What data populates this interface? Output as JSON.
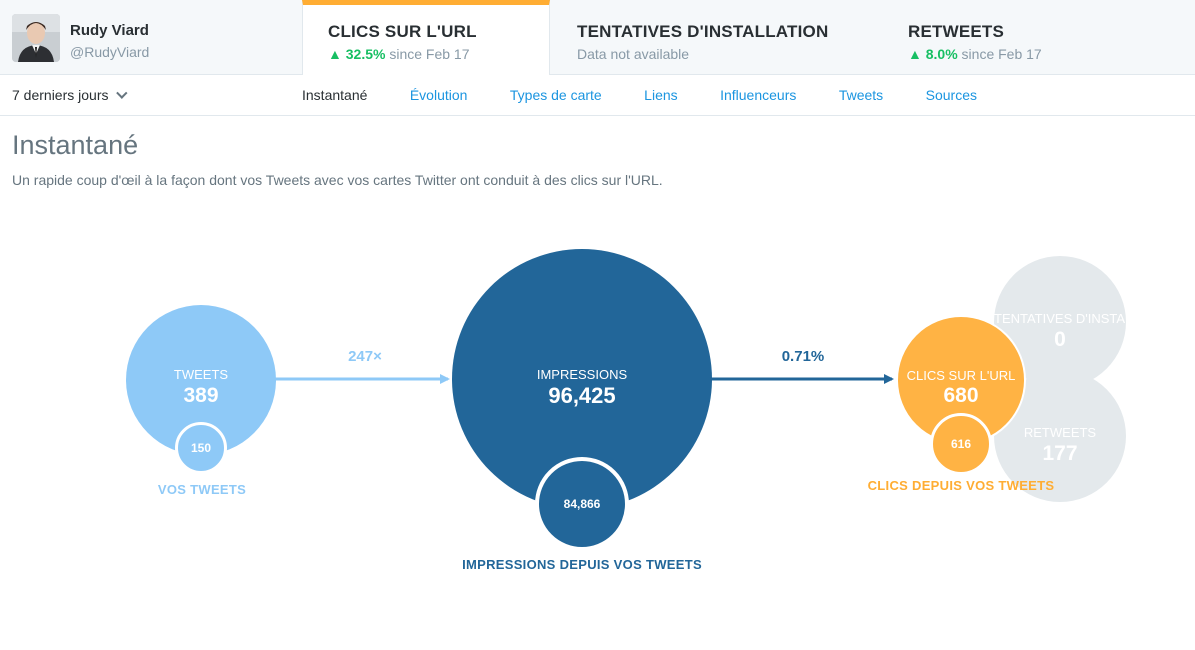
{
  "profile": {
    "name": "Rudy Viard",
    "handle": "@RudyViard"
  },
  "metrics": [
    {
      "title": "CLICS SUR L'URL",
      "change": "▲ 32.5%",
      "since": "since Feb 17"
    },
    {
      "title": "TENTATIVES D'INSTALLATION",
      "note": "Data not available"
    },
    {
      "title": "RETWEETS",
      "change": "▲ 8.0%",
      "since": "since Feb 17"
    }
  ],
  "range": {
    "label": "7 derniers jours"
  },
  "nav": [
    "Instantané",
    "Évolution",
    "Types de carte",
    "Liens",
    "Influenceurs",
    "Tweets",
    "Sources"
  ],
  "page": {
    "title": "Instantané",
    "description": "Un rapide coup d'œil à la façon dont vos Tweets avec vos cartes Twitter ont conduit à des clics sur l'URL."
  },
  "funnel": {
    "tweets": {
      "label": "TWEETS",
      "value": "389",
      "own": "150",
      "caption": "VOS TWEETS"
    },
    "rate_tweets_impressions": "247×",
    "impressions": {
      "label": "IMPRESSIONS",
      "value": "96,425",
      "own": "84,866",
      "caption": "IMPRESSIONS DEPUIS VOS TWEETS"
    },
    "rate_impressions_clicks": "0.71%",
    "clicks": {
      "label": "CLICS SUR L'URL",
      "value": "680",
      "own": "616",
      "caption": "CLICS DEPUIS VOS TWEETS"
    },
    "installs": {
      "label": "TENTATIVES D'INSTALLATION",
      "value": "0"
    },
    "retweets": {
      "label": "RETWEETS",
      "value": "177"
    }
  },
  "colors": {
    "tweets": "#8ec9f7",
    "impressions": "#226699",
    "clicks": "#ffb344",
    "inactive": "#e4e9ec",
    "accent_tab": "#ffad33",
    "link": "#1b95e0",
    "positive": "#17bf63"
  }
}
